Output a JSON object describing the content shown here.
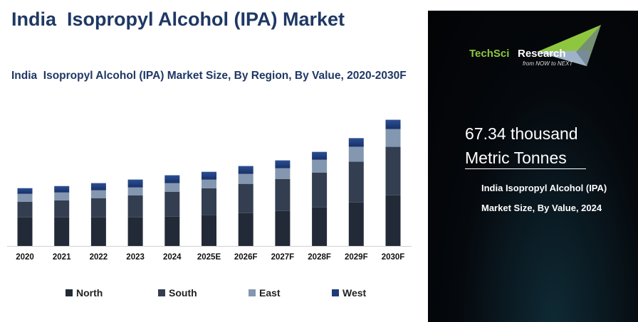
{
  "title": "India  Isopropyl Alcohol (IPA) Market",
  "subtitle": "India  Isopropyl Alcohol (IPA) Market Size, By Region, By Value, 2020-2030F",
  "panel": {
    "logo_text_1": "TechSci",
    "logo_text_2": "Research",
    "logo_tagline": "from NOW to NEXT",
    "value_line_1": "67.34 thousand",
    "value_line_2": "Metric Tonnes",
    "description": "India  Isopropyl Alcohol (IPA) Market Size, By Value, 2024"
  },
  "chart_data": {
    "type": "bar",
    "stacked": true,
    "title": "India  Isopropyl Alcohol (IPA) Market Size, By Region, By Value, 2020-2030F",
    "xlabel": "",
    "ylabel": "",
    "ylim": [
      0,
      122
    ],
    "grid": false,
    "legend_position": "bottom",
    "categories": [
      "2020",
      "2021",
      "2022",
      "2023",
      "2024",
      "2025E",
      "2026F",
      "2027F",
      "2028F",
      "2029F",
      "2030F"
    ],
    "series": [
      {
        "name": "North",
        "color": "#232a37",
        "values": [
          27.2,
          27.2,
          27.2,
          27.2,
          27.9,
          29.2,
          31.3,
          33.3,
          36.7,
          41.5,
          48.3
        ]
      },
      {
        "name": "South",
        "color": "#343e51",
        "values": [
          15.0,
          16.3,
          18.4,
          21.1,
          23.8,
          25.8,
          27.9,
          30.6,
          33.3,
          38.8,
          46.2
        ]
      },
      {
        "name": "East",
        "color": "#8497b0",
        "values": [
          7.5,
          7.5,
          7.5,
          7.5,
          8.2,
          8.2,
          9.5,
          10.2,
          12.2,
          14.3,
          17.0
        ]
      },
      {
        "name": "West",
        "color": "#1f3c7a",
        "values": [
          5.4,
          6.1,
          6.8,
          7.5,
          7.5,
          7.5,
          7.5,
          7.5,
          7.5,
          8.2,
          8.8
        ]
      }
    ]
  }
}
